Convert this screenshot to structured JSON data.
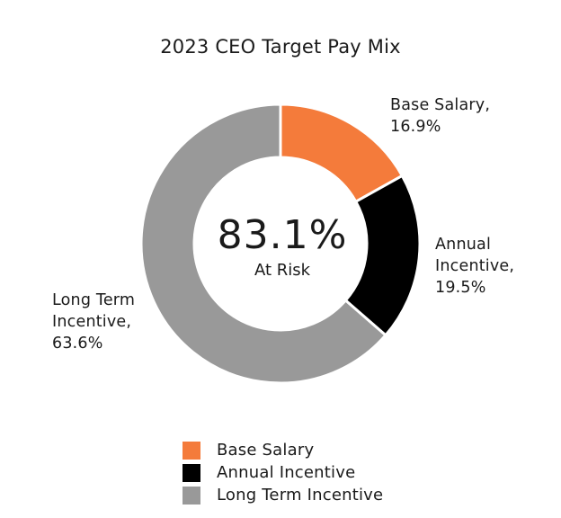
{
  "chart_data": {
    "type": "pie",
    "variant": "donut",
    "title": "2023 CEO Target Pay Mix",
    "center": {
      "value": "83.1%",
      "label": "At Risk"
    },
    "slices": [
      {
        "name": "Base Salary",
        "value": 16.9,
        "label_lines": [
          "Base Salary,",
          "16.9%"
        ],
        "color": "#F47B3B"
      },
      {
        "name": "Annual Incentive",
        "value": 19.5,
        "label_lines": [
          "Annual",
          "Incentive,",
          "19.5%"
        ],
        "color": "#000000"
      },
      {
        "name": "Long Term Incentive",
        "value": 63.6,
        "label_lines": [
          "Long Term",
          "Incentive,",
          "63.6%"
        ],
        "color": "#999999"
      }
    ],
    "legend": {
      "placement": "bottom",
      "items": [
        "Base Salary",
        "Annual Incentive",
        "Long Term Incentive"
      ]
    }
  }
}
